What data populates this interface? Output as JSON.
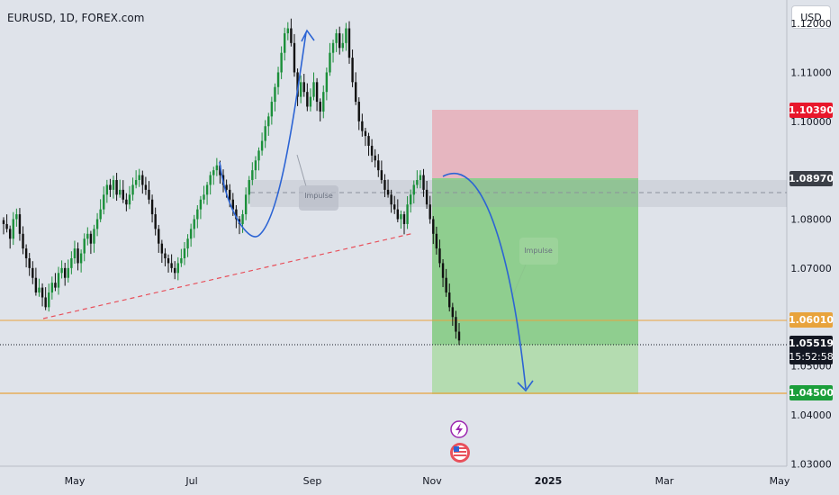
{
  "header": {
    "symbol": "EURUSD, 1D, FOREX.com",
    "currency": "USD"
  },
  "colors": {
    "background": "#dfe3ea",
    "up_candle": "#1b8f3a",
    "down_candle": "#111111",
    "stop_zone": "#e6b6c0",
    "target_zone": "#8fce8f",
    "target_zone_light": "#b4dcb0",
    "level_line": "#e8a33c",
    "arrow": "#2c64d4",
    "trendline": "#e8505b",
    "stop_label": "#e8172b",
    "entry_label": "#3b3f47",
    "level_label": "#e8a33c",
    "target_label": "#1a9e3a",
    "current_label": "#131722"
  },
  "chart_data": {
    "type": "candlestick",
    "title": "EURUSD, 1D, FOREX.com",
    "ylim": [
      1.0295,
      1.1248
    ],
    "x_ticks": [
      "May",
      "Jul",
      "Sep",
      "Nov",
      "2025",
      "Mar",
      "May"
    ],
    "y_ticks": [
      "1.03000",
      "1.04000",
      "1.05000",
      "1.07000",
      "1.08000",
      "1.10000",
      "1.11000",
      "1.12000"
    ],
    "y_tick_values": [
      1.03,
      1.04,
      1.05,
      1.07,
      1.08,
      1.1,
      1.11,
      1.12
    ],
    "candles_close": [
      1.079,
      1.078,
      1.076,
      1.08,
      1.081,
      1.077,
      1.074,
      1.072,
      1.07,
      1.068,
      1.065,
      1.066,
      1.064,
      1.062,
      1.065,
      1.067,
      1.066,
      1.069,
      1.07,
      1.068,
      1.07,
      1.072,
      1.074,
      1.071,
      1.073,
      1.076,
      1.077,
      1.075,
      1.078,
      1.08,
      1.082,
      1.085,
      1.087,
      1.086,
      1.088,
      1.085,
      1.086,
      1.084,
      1.083,
      1.085,
      1.087,
      1.088,
      1.089,
      1.087,
      1.086,
      1.084,
      1.081,
      1.078,
      1.075,
      1.073,
      1.072,
      1.071,
      1.07,
      1.069,
      1.071,
      1.072,
      1.074,
      1.076,
      1.078,
      1.08,
      1.082,
      1.084,
      1.085,
      1.087,
      1.089,
      1.09,
      1.091,
      1.089,
      1.087,
      1.086,
      1.084,
      1.082,
      1.08,
      1.079,
      1.081,
      1.085,
      1.088,
      1.09,
      1.092,
      1.094,
      1.096,
      1.099,
      1.101,
      1.104,
      1.107,
      1.11,
      1.114,
      1.118,
      1.119,
      1.116,
      1.11,
      1.105,
      1.108,
      1.106,
      1.103,
      1.105,
      1.108,
      1.104,
      1.102,
      1.106,
      1.11,
      1.114,
      1.116,
      1.118,
      1.115,
      1.116,
      1.119,
      1.113,
      1.108,
      1.104,
      1.1,
      1.098,
      1.097,
      1.095,
      1.093,
      1.092,
      1.09,
      1.088,
      1.086,
      1.085,
      1.083,
      1.082,
      1.08,
      1.081,
      1.079,
      1.083,
      1.085,
      1.087,
      1.088,
      1.089,
      1.086,
      1.083,
      1.08,
      1.077,
      1.074,
      1.071,
      1.068,
      1.065,
      1.062,
      1.06,
      1.057,
      1.0552
    ],
    "trade": {
      "stop_loss": 1.1039,
      "entry": 1.0897,
      "take_profit": 1.045,
      "current_price": 1.05519
    },
    "levels": [
      1.0601,
      1.045
    ],
    "price_labels": [
      {
        "text": "1.10390",
        "kind": "stop"
      },
      {
        "text": "1.08970",
        "kind": "entry"
      },
      {
        "text": "1.06010",
        "kind": "level"
      },
      {
        "text": "1.05519",
        "kind": "current"
      },
      {
        "text": "15:52:58",
        "kind": "countdown"
      },
      {
        "text": "1.04500",
        "kind": "target"
      }
    ],
    "annotations": [
      "Impulse",
      "Impulse"
    ]
  }
}
